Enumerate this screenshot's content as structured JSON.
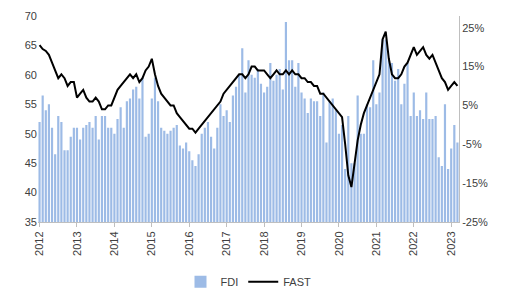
{
  "chart_data": {
    "type": "bar",
    "categories": [
      "2012",
      null,
      null,
      null,
      null,
      null,
      null,
      null,
      null,
      null,
      null,
      null,
      "2013",
      null,
      null,
      null,
      null,
      null,
      null,
      null,
      null,
      null,
      null,
      null,
      "2014",
      null,
      null,
      null,
      null,
      null,
      null,
      null,
      null,
      null,
      null,
      null,
      "2015",
      null,
      null,
      null,
      null,
      null,
      null,
      null,
      null,
      null,
      null,
      null,
      "2016",
      null,
      null,
      null,
      null,
      null,
      null,
      null,
      null,
      null,
      null,
      null,
      "2017",
      null,
      null,
      null,
      null,
      null,
      null,
      null,
      null,
      null,
      null,
      null,
      "2018",
      null,
      null,
      null,
      null,
      null,
      null,
      null,
      null,
      null,
      null,
      null,
      "2019",
      null,
      null,
      null,
      null,
      null,
      null,
      null,
      null,
      null,
      null,
      null,
      "2020",
      null,
      null,
      null,
      null,
      null,
      null,
      null,
      null,
      null,
      null,
      null,
      "2021",
      null,
      null,
      null,
      null,
      null,
      null,
      null,
      null,
      null,
      null,
      null,
      "2022",
      null,
      null,
      null,
      null,
      null,
      null,
      null,
      null,
      null,
      null,
      null,
      "2023",
      null,
      null
    ],
    "series": [
      {
        "name": "FDI",
        "type": "bar",
        "color": "#9dbbe6",
        "axis": "y",
        "values": [
          52,
          56.5,
          54,
          55,
          51,
          46.5,
          53,
          52,
          47.2,
          47.2,
          49.5,
          51,
          51,
          49,
          51,
          51.5,
          52,
          51,
          53,
          49,
          53,
          53,
          51,
          51,
          50,
          52.5,
          54.5,
          51,
          55.5,
          56,
          57.5,
          58,
          56,
          59.5,
          49.5,
          50,
          56,
          59.5,
          55.5,
          51,
          50.5,
          50,
          50.5,
          51,
          51.5,
          48,
          47.5,
          48.5,
          47,
          45.5,
          44.5,
          46.5,
          50,
          51,
          52,
          49.5,
          47.5,
          51,
          55,
          53,
          54,
          52,
          56.5,
          58,
          60,
          64.5,
          57,
          62.5,
          60,
          59.5,
          61,
          58.5,
          57,
          58,
          62,
          59,
          60,
          61,
          57.5,
          69,
          62.5,
          62.5,
          58,
          62,
          57,
          56,
          53.5,
          56,
          55.5,
          55.5,
          53,
          57,
          48.5,
          55.5,
          56,
          54,
          50,
          51.5,
          44,
          53,
          45,
          45,
          56.5,
          50,
          50,
          55,
          54.5,
          62.5,
          55,
          57,
          66,
          66,
          62.5,
          62,
          59,
          61,
          55,
          58.5,
          62,
          53,
          57,
          53,
          54,
          52.5,
          57,
          52.5,
          52.5,
          53,
          46,
          44.5,
          55,
          44,
          47.5,
          51.5,
          48.5
        ]
      },
      {
        "name": "FAST",
        "type": "line",
        "color": "#000000",
        "axis": "y2",
        "values": [
          20.5,
          19.5,
          19,
          18,
          16,
          14,
          12,
          13,
          12,
          10,
          11,
          11,
          7,
          8,
          9,
          7,
          6,
          6,
          7,
          6,
          4,
          4,
          5,
          5,
          7,
          9,
          10,
          11,
          12,
          13,
          12,
          13,
          11,
          12,
          14,
          15,
          17,
          13,
          10,
          8,
          7,
          6,
          5,
          5,
          3,
          2,
          1,
          0,
          -1,
          -1,
          -2,
          -1,
          0,
          1,
          2,
          3,
          4,
          5,
          6,
          8,
          9,
          10,
          11,
          12,
          13,
          13,
          12,
          13,
          15,
          15,
          14,
          14,
          14,
          13,
          12,
          13,
          14,
          13,
          13,
          14,
          13,
          14,
          13,
          13,
          12,
          12,
          11,
          11,
          10,
          10,
          8,
          8,
          7,
          6,
          5,
          4,
          3,
          2,
          -5,
          -13,
          -16,
          -10,
          -4,
          0,
          3,
          5,
          7,
          9,
          11,
          13,
          22,
          24,
          17,
          13,
          12,
          12,
          13,
          15,
          16,
          18,
          20,
          18,
          19,
          20,
          18,
          17,
          18,
          16,
          14,
          12,
          11,
          9,
          10,
          11,
          10
        ]
      }
    ],
    "ylim": [
      35,
      70
    ],
    "yticks": [
      35,
      40,
      45,
      50,
      55,
      60,
      65,
      70
    ],
    "y2lim": [
      -25,
      28
    ],
    "y2ticks": [
      {
        "value": -25,
        "label": "-25%"
      },
      {
        "value": -15,
        "label": "-15%"
      },
      {
        "value": -5,
        "label": "-5%"
      },
      {
        "value": 5,
        "label": "5%"
      },
      {
        "value": 15,
        "label": "15%"
      },
      {
        "value": 25,
        "label": "25%"
      }
    ],
    "grid": false,
    "legend": "bottom"
  }
}
